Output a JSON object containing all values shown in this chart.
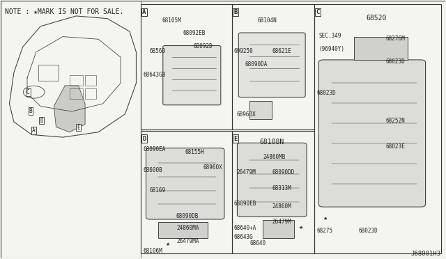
{
  "bg_color": "#f5f5f0",
  "border_color": "#333333",
  "line_color": "#444444",
  "text_color": "#222222",
  "note_text": "NOTE : ★MARK IS NOT FOR SALE.",
  "diagram_id": "J68001H3",
  "part_number_main": "68520",
  "section_labels": [
    "A",
    "B",
    "C",
    "D",
    "E"
  ],
  "car_outline_color": "#555555",
  "font_size_note": 7,
  "font_size_parts": 5.5,
  "font_size_label": 7,
  "font_size_main_part": 7
}
